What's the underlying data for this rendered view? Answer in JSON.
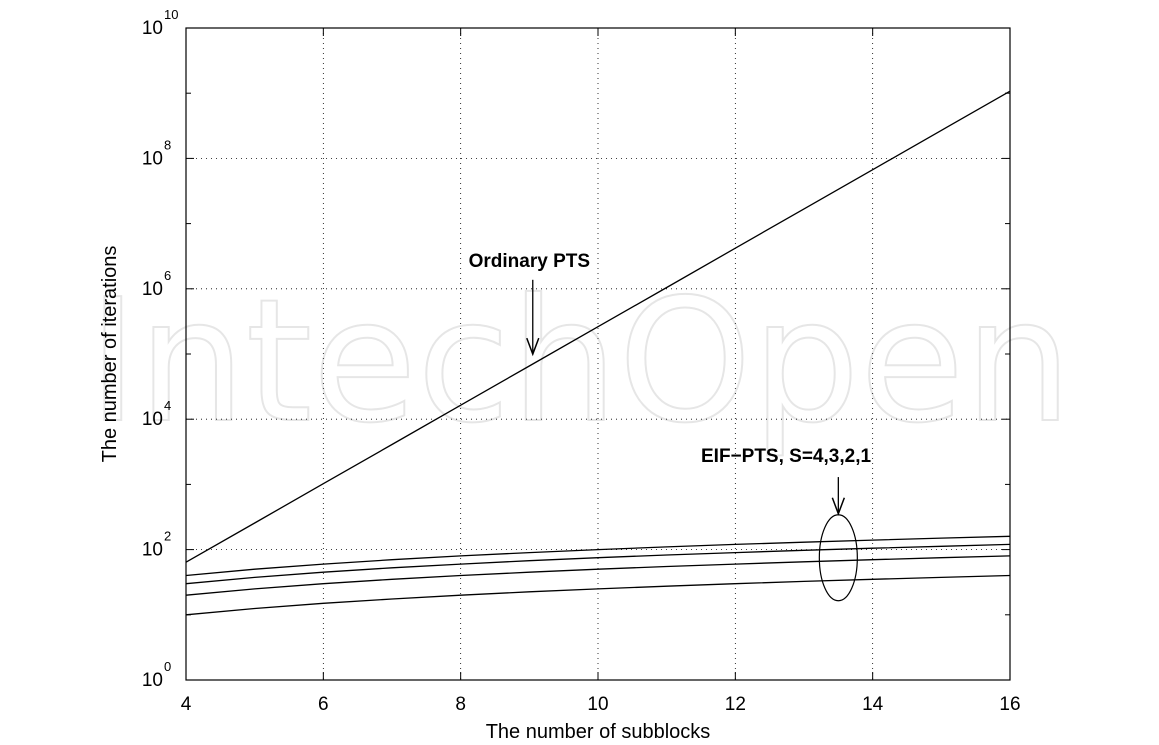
{
  "chart_data": {
    "type": "line",
    "xlabel": "The number of subblocks",
    "ylabel": "The number of iterations",
    "xlim": [
      4,
      16
    ],
    "ylim": [
      1,
      10000000000
    ],
    "yscale": "log",
    "grid": true,
    "x": [
      4,
      5,
      6,
      7,
      8,
      9,
      10,
      11,
      12,
      13,
      14,
      15,
      16
    ],
    "xticks": [
      "4",
      "6",
      "8",
      "10",
      "12",
      "14",
      "16"
    ],
    "yticks": [
      {
        "base": "10",
        "exp": "0"
      },
      {
        "base": "10",
        "exp": "2"
      },
      {
        "base": "10",
        "exp": "4"
      },
      {
        "base": "10",
        "exp": "6"
      },
      {
        "base": "10",
        "exp": "8"
      },
      {
        "base": "10",
        "exp": "10"
      }
    ],
    "series": [
      {
        "values": [
          64,
          256,
          1024,
          4096,
          16384,
          65536,
          262144,
          1048576,
          4194304,
          16777216,
          67108864,
          268435456,
          1073741824
        ]
      },
      {
        "values": [
          40,
          50,
          60,
          70,
          80,
          90,
          100,
          110,
          120,
          130,
          140,
          150,
          160
        ]
      },
      {
        "values": [
          30,
          37.5,
          45,
          52.5,
          60,
          67.5,
          75,
          82.5,
          90,
          97.5,
          105,
          112.5,
          120
        ]
      },
      {
        "values": [
          20,
          25,
          30,
          35,
          40,
          45,
          50,
          55,
          60,
          65,
          70,
          75,
          80
        ]
      },
      {
        "values": [
          10,
          12.5,
          15,
          17.5,
          20,
          22.5,
          25,
          27.5,
          30,
          32.5,
          35,
          37.5,
          40
        ]
      }
    ],
    "annotations": [
      {
        "text": "Ordinary PTS"
      },
      {
        "text": "EIF−PTS, S=4,3,2,1"
      }
    ]
  },
  "watermark": "IntechOpen"
}
